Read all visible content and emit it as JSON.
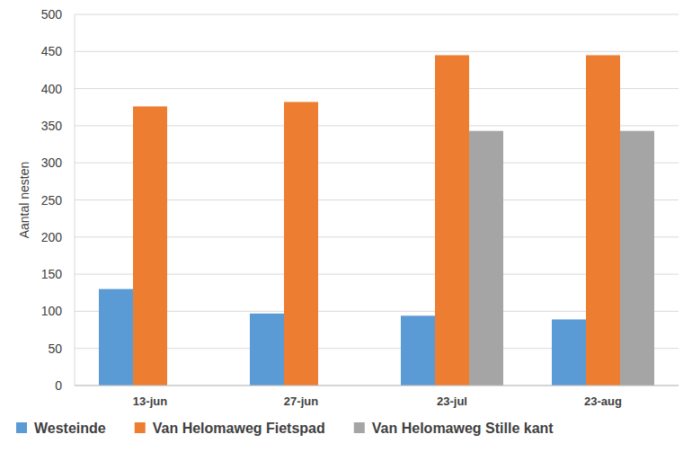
{
  "chart_data": {
    "type": "bar",
    "y_label": "Aantal nesten",
    "categories": [
      "13-jun",
      "27-jun",
      "23-jul",
      "23-aug"
    ],
    "series": [
      {
        "name": "Westeinde",
        "color": "#5b9bd5",
        "values": [
          130,
          97,
          94,
          89
        ]
      },
      {
        "name": "Van Helomaweg Fietspad",
        "color": "#ed7d31",
        "values": [
          376,
          382,
          445,
          445
        ]
      },
      {
        "name": "Van Helomaweg Stille kant",
        "color": "#a5a5a5",
        "values": [
          null,
          null,
          343,
          343
        ]
      }
    ],
    "ylim": [
      0,
      500
    ],
    "yticks": [
      0,
      50,
      100,
      150,
      200,
      250,
      300,
      350,
      400,
      450,
      500
    ],
    "grid": true,
    "legend": "bottom"
  }
}
